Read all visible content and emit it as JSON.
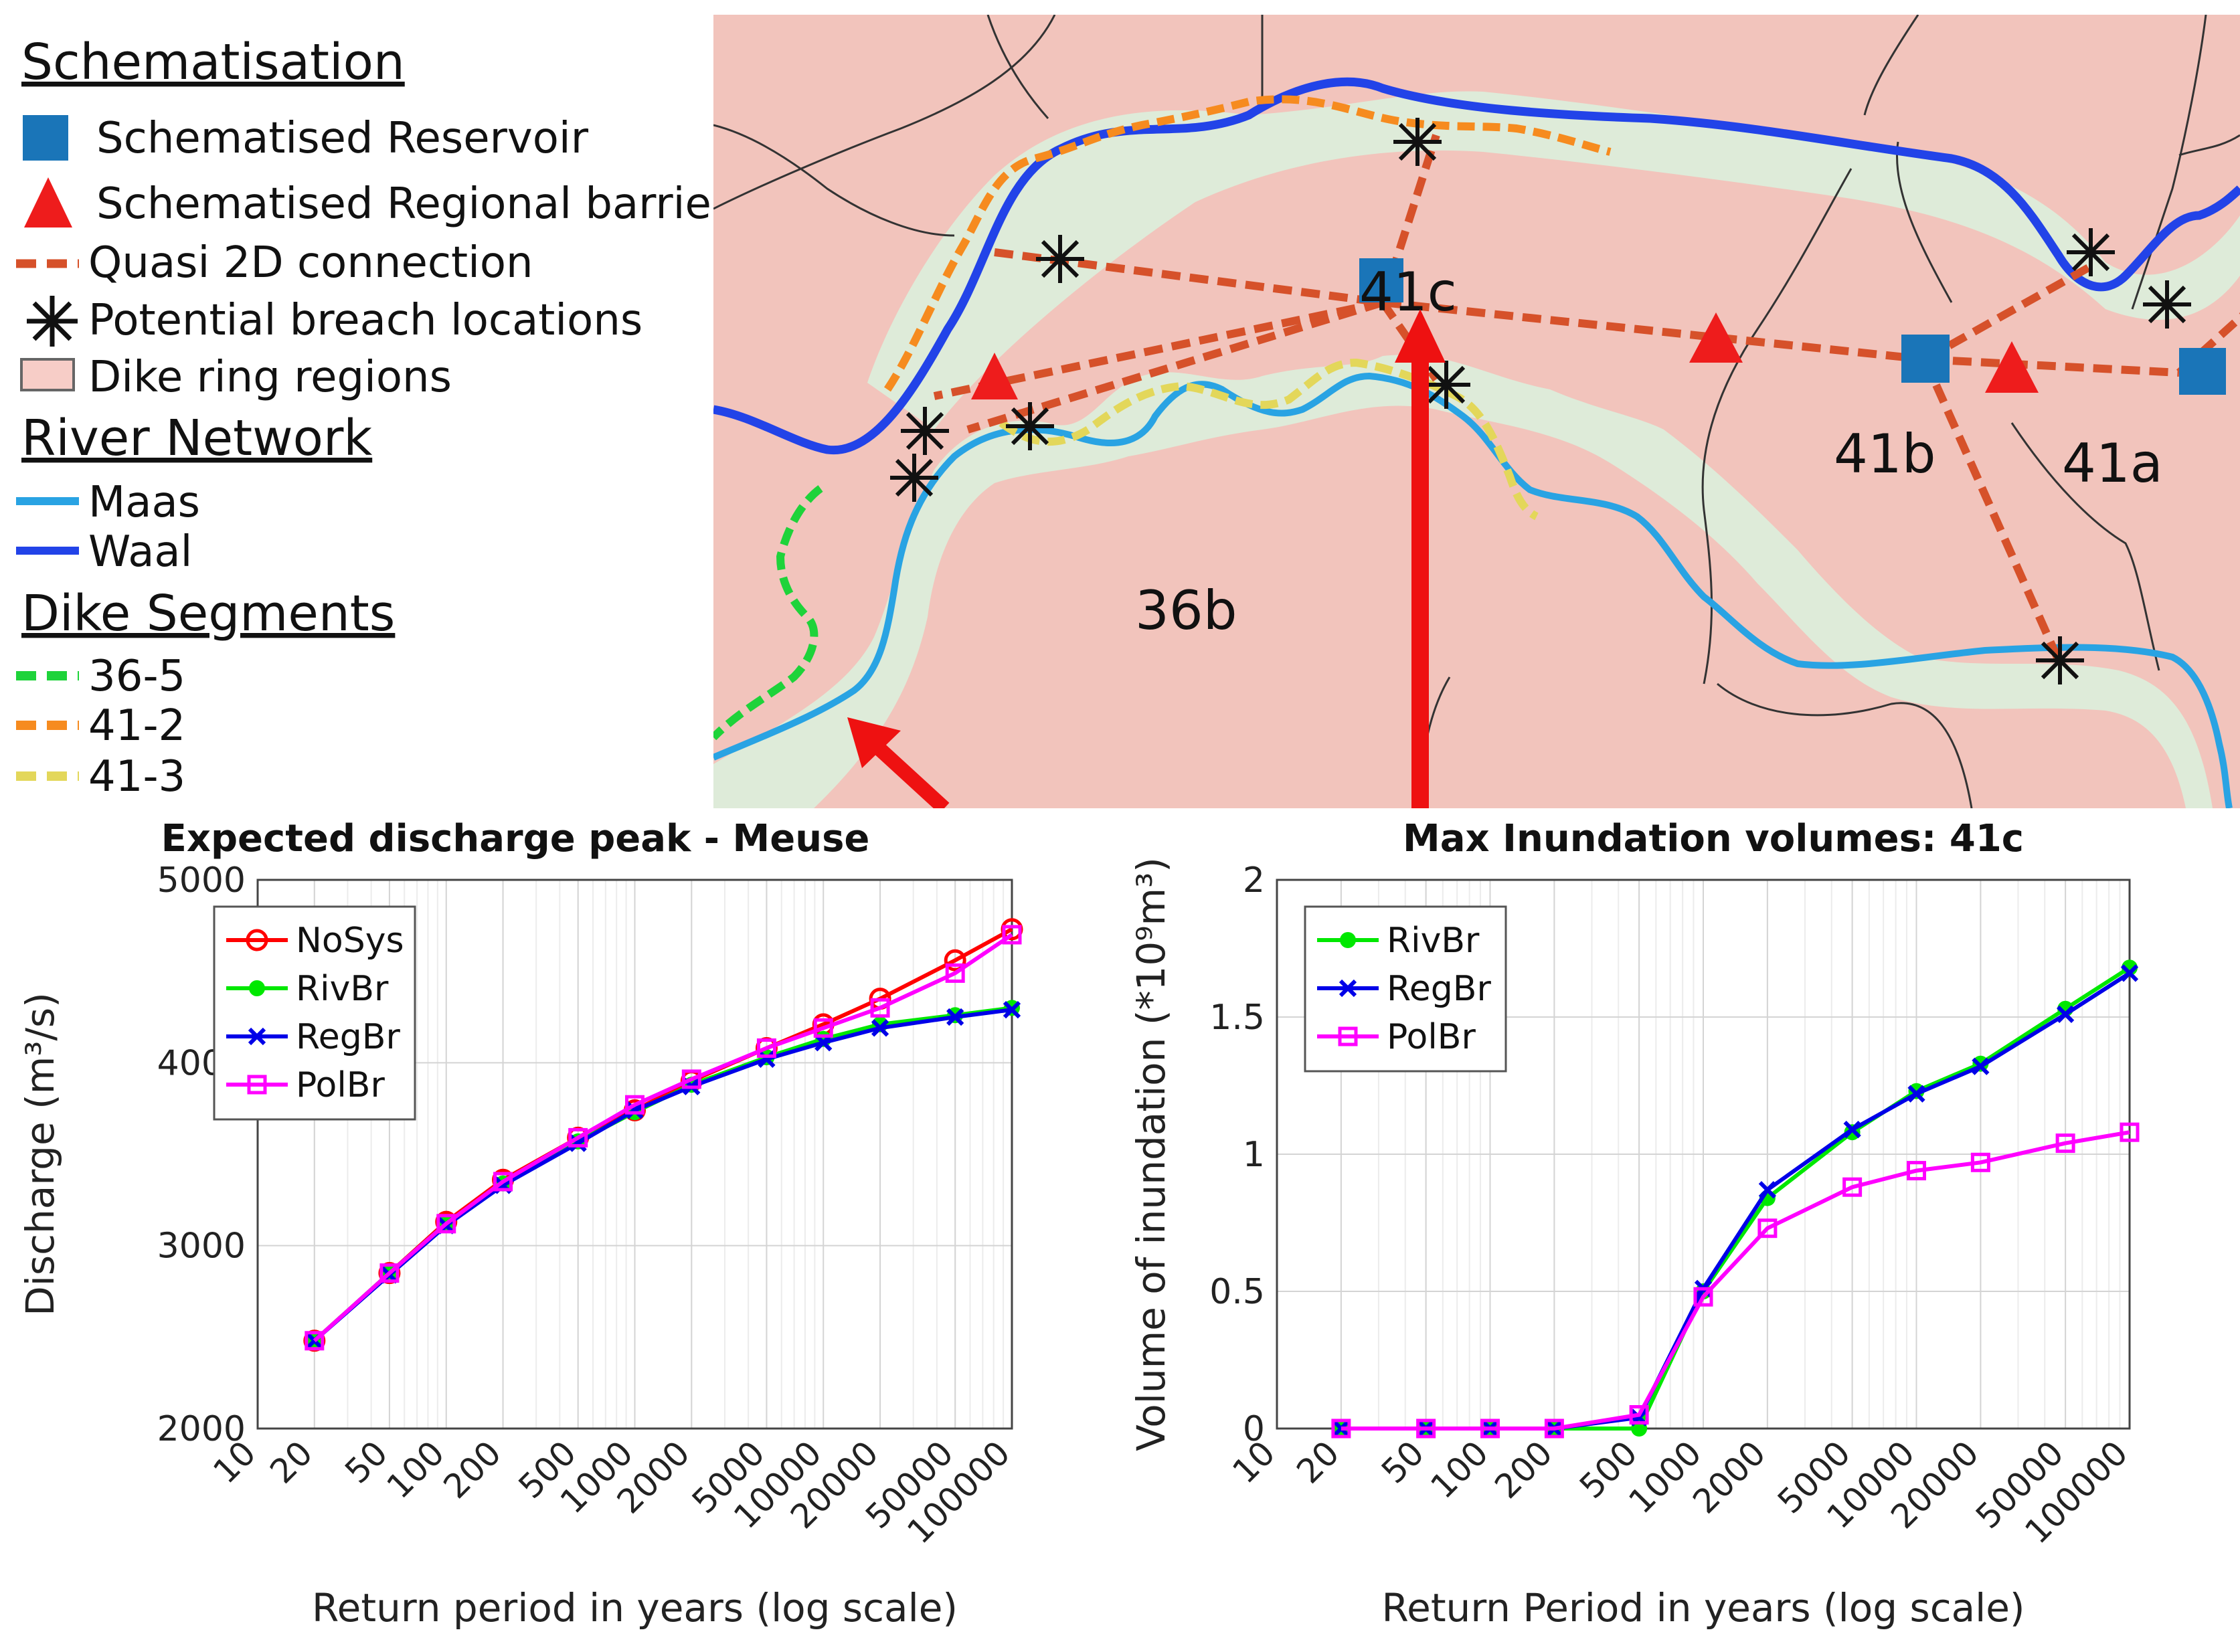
{
  "legend": {
    "schematisation": {
      "title": "Schematisation",
      "items": [
        {
          "label": "Schematised Reservoir",
          "symbol": "square",
          "color": "#1a75b8"
        },
        {
          "label": "Schematised Regional barrier",
          "symbol": "triangle",
          "color": "#ee1c1c"
        },
        {
          "label": "Quasi 2D connection",
          "symbol": "dashed-line",
          "color": "#d6512a"
        },
        {
          "label": "Potential breach locations",
          "symbol": "asterisk",
          "color": "#000000"
        },
        {
          "label": "Dike ring regions",
          "symbol": "box",
          "color": "#f7cdc7"
        }
      ]
    },
    "river_network": {
      "title": "River Network",
      "items": [
        {
          "label": "Maas",
          "color": "#29a3e3"
        },
        {
          "label": "Waal",
          "color": "#2243e8"
        }
      ]
    },
    "dike_segments": {
      "title": "Dike Segments",
      "items": [
        {
          "label": "36-5",
          "color": "#1ed33a"
        },
        {
          "label": "41-2",
          "color": "#f68b1f"
        },
        {
          "label": "41-3",
          "color": "#e3d75a"
        }
      ]
    }
  },
  "map": {
    "region_labels": [
      "41c",
      "41b",
      "41a",
      "36b"
    ],
    "colors": {
      "land": "#f2c4bc",
      "water_plain": "#dcefdc",
      "maas": "#29a3e3",
      "waal": "#2243e8",
      "q2d": "#d6512a",
      "d41_2": "#f68b1f",
      "d41_3": "#e3d75a",
      "d36_5": "#1ed33a",
      "arrow": "#ee1111",
      "reservoir": "#1a75b8",
      "barrier": "#ee1c1c"
    }
  },
  "chart_data": [
    {
      "type": "line",
      "title": "Expected discharge peak - Meuse",
      "xlabel": "Return period in years (log scale)",
      "ylabel": "Discharge (m³/s)",
      "xscale": "log",
      "xlim": [
        10,
        100000
      ],
      "ylim": [
        2000,
        5000
      ],
      "xticks": [
        10,
        20,
        50,
        100,
        200,
        500,
        1000,
        2000,
        5000,
        10000,
        20000,
        50000,
        100000
      ],
      "yticks": [
        2000,
        3000,
        4000,
        5000
      ],
      "grid": true,
      "legend_position": "top-left",
      "x": [
        20,
        50,
        100,
        200,
        500,
        1000,
        2000,
        5000,
        10000,
        20000,
        50000,
        100000
      ],
      "series": [
        {
          "name": "NoSys",
          "color": "#ff0000",
          "marker": "o",
          "values": [
            2480,
            2850,
            3130,
            3360,
            3590,
            3740,
            3900,
            4080,
            4210,
            4350,
            4560,
            4730
          ]
        },
        {
          "name": "RivBr",
          "color": "#00e800",
          "marker": "dot",
          "values": [
            2480,
            2850,
            3120,
            3340,
            3570,
            3730,
            3880,
            4030,
            4130,
            4210,
            4260,
            4300
          ]
        },
        {
          "name": "RegBr",
          "color": "#0000e8",
          "marker": "x",
          "values": [
            2480,
            2840,
            3110,
            3330,
            3560,
            3740,
            3870,
            4020,
            4110,
            4190,
            4250,
            4290
          ]
        },
        {
          "name": "PolBr",
          "color": "#ff00ff",
          "marker": "s",
          "values": [
            2480,
            2850,
            3120,
            3350,
            3590,
            3770,
            3910,
            4080,
            4190,
            4300,
            4490,
            4700
          ]
        }
      ]
    },
    {
      "type": "line",
      "title": "Max Inundation volumes: 41c",
      "xlabel": "Return Period in years (log scale)",
      "ylabel": "Volume of inundation (*10⁹m³)",
      "xscale": "log",
      "xlim": [
        10,
        100000
      ],
      "ylim": [
        0,
        2
      ],
      "xticks": [
        10,
        20,
        50,
        100,
        200,
        500,
        1000,
        2000,
        5000,
        10000,
        20000,
        50000,
        100000
      ],
      "yticks": [
        0,
        0.5,
        1,
        1.5,
        2
      ],
      "grid": true,
      "legend_position": "top-left",
      "x": [
        20,
        50,
        100,
        200,
        500,
        1000,
        2000,
        5000,
        10000,
        20000,
        50000,
        100000
      ],
      "series": [
        {
          "name": "RivBr",
          "color": "#00e800",
          "marker": "dot",
          "values": [
            0,
            0,
            0,
            0,
            0,
            0.5,
            0.84,
            1.08,
            1.23,
            1.33,
            1.53,
            1.68
          ]
        },
        {
          "name": "RegBr",
          "color": "#0000e8",
          "marker": "x",
          "values": [
            0,
            0,
            0,
            0,
            0.04,
            0.51,
            0.87,
            1.09,
            1.22,
            1.32,
            1.51,
            1.66
          ]
        },
        {
          "name": "PolBr",
          "color": "#ff00ff",
          "marker": "s",
          "values": [
            0,
            0,
            0,
            0,
            0.05,
            0.48,
            0.73,
            0.88,
            0.94,
            0.97,
            1.04,
            1.08
          ]
        }
      ]
    }
  ]
}
